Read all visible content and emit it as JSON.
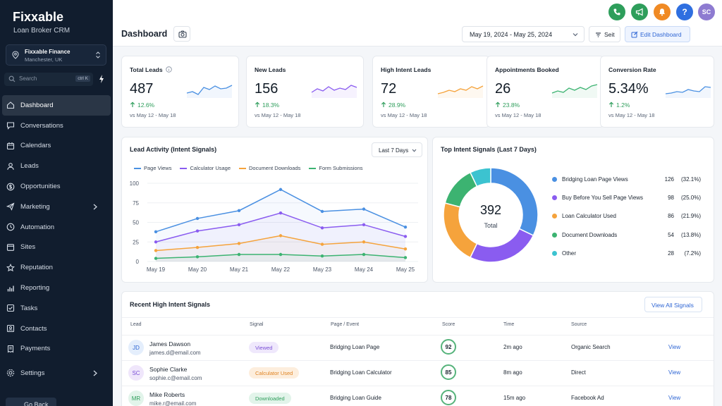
{
  "app": {
    "title": "Fixxable",
    "subtitle": "Loan Broker CRM"
  },
  "location": {
    "name": "Fixxable Finance",
    "city": "Manchester, UK"
  },
  "search": {
    "placeholder": "Search",
    "shortcut": "ctrl K"
  },
  "nav": [
    {
      "label": "Dashboard",
      "icon": "home-icon"
    },
    {
      "label": "Conversations",
      "icon": "chat-icon"
    },
    {
      "label": "Calendars",
      "icon": "calendar-icon"
    },
    {
      "label": "Leads",
      "icon": "user-icon"
    },
    {
      "label": "Opportunities",
      "icon": "dollar-icon"
    },
    {
      "label": "Marketing",
      "icon": "send-icon"
    },
    {
      "label": "Automation",
      "icon": "clock-icon"
    },
    {
      "label": "Sites",
      "icon": "window-icon"
    },
    {
      "label": "Reputation",
      "icon": "star-icon"
    },
    {
      "label": "Reporting",
      "icon": "bars-icon"
    },
    {
      "label": "Tasks",
      "icon": "checkbox-icon"
    },
    {
      "label": "Contacts",
      "icon": "contact-card-icon"
    },
    {
      "label": "Payments",
      "icon": "receipt-icon"
    }
  ],
  "settings_label": "Settings",
  "go_back_label": "Go Back",
  "header": {
    "title": "Dashboard",
    "date_range": "May 19, 2024 - May 25, 2024",
    "seit_label": "Seit",
    "edit_label": "Edit Dashboard",
    "avatar_initials": "SC"
  },
  "colors": {
    "phone": "#2e9e5b",
    "megaphone": "#2e9e5b",
    "bell": "#f08a24",
    "help": "#2f6fe0",
    "avatar": "#8e7bd1",
    "page_views": "#4a90e2",
    "calculator": "#8a5cf0",
    "documents": "#f5a33c",
    "forms": "#3cb371",
    "other": "#3cc3d0"
  },
  "kpis": [
    {
      "label": "Total Leads",
      "value": "487",
      "change": "12.6%",
      "vs": "vs May 12 - May 18",
      "color": "#4a90e2",
      "has_info": true
    },
    {
      "label": "New Leads",
      "value": "156",
      "change": "18.3%",
      "vs": "vs May 12 - May 18",
      "color": "#8a5cf0",
      "has_info": false
    },
    {
      "label": "High Intent Leads",
      "value": "72",
      "change": "28.9%",
      "vs": "vs May 12 - May 18",
      "color": "#f5a33c",
      "has_info": false
    },
    {
      "label": "Appointments Booked",
      "value": "26",
      "change": "23.8%",
      "vs": "vs May 12 - May 18",
      "color": "#3cb371",
      "has_info": false
    },
    {
      "label": "Conversion Rate",
      "value": "5.34%",
      "change": "1.2%",
      "vs": "vs May 12 - May 18",
      "color": "#4a90e2",
      "has_info": false
    }
  ],
  "activity": {
    "title": "Lead Activity (Intent Signals)",
    "range_label": "Last 7 Days"
  },
  "chart_data": {
    "type": "line",
    "categories": [
      "May 19",
      "May 20",
      "May 21",
      "May 22",
      "May 23",
      "May 24",
      "May 25"
    ],
    "ylim": [
      0,
      100
    ],
    "yticks": [
      0,
      25,
      50,
      75,
      100
    ],
    "series": [
      {
        "name": "Page Views",
        "values": [
          38,
          55,
          65,
          92,
          64,
          67,
          44
        ]
      },
      {
        "name": "Calculator Usage",
        "values": [
          25,
          39,
          47,
          62,
          43,
          47,
          32
        ]
      },
      {
        "name": "Document Downloads",
        "values": [
          14,
          18,
          23,
          33,
          22,
          25,
          16
        ]
      },
      {
        "name": "Form Submissions",
        "values": [
          4,
          6,
          9,
          9,
          7,
          9,
          5
        ]
      }
    ],
    "legend": "top"
  },
  "intent": {
    "title": "Top Intent Signals (Last 7 Days)",
    "total": "392",
    "total_label": "Total",
    "slices": [
      {
        "name": "Bridging Loan Page Views",
        "count": 126,
        "pct": "(32.1%)"
      },
      {
        "name": "Buy Before You Sell Page Views",
        "count": 98,
        "pct": "(25.0%)"
      },
      {
        "name": "Loan Calculator Used",
        "count": 86,
        "pct": "(21.9%)"
      },
      {
        "name": "Document Downloads",
        "count": 54,
        "pct": "(13.8%)"
      },
      {
        "name": "Other",
        "count": 28,
        "pct": "(7.2%)"
      }
    ]
  },
  "signals": {
    "title": "Recent High Intent Signals",
    "view_all": "View All Signals",
    "columns": [
      "Lead",
      "Signal",
      "Page / Event",
      "Score",
      "Time",
      "Source"
    ],
    "rows": [
      {
        "initials": "JD",
        "name": "James Dawson",
        "email": "james.d@email.com",
        "signal": "Viewed",
        "page": "Bridging Loan Page",
        "score": "92",
        "time": "2m ago",
        "source": "Organic Search",
        "action": "View"
      },
      {
        "initials": "SC",
        "name": "Sophie Clarke",
        "email": "sophie.c@email.com",
        "signal": "Calculator Used",
        "page": "Bridging Loan Calculator",
        "score": "85",
        "time": "8m ago",
        "source": "Direct",
        "action": "View"
      },
      {
        "initials": "MR",
        "name": "Mike Roberts",
        "email": "mike.r@email.com",
        "signal": "Downloaded",
        "page": "Bridging Loan Guide",
        "score": "78",
        "time": "15m ago",
        "source": "Facebook Ad",
        "action": "View"
      }
    ]
  }
}
